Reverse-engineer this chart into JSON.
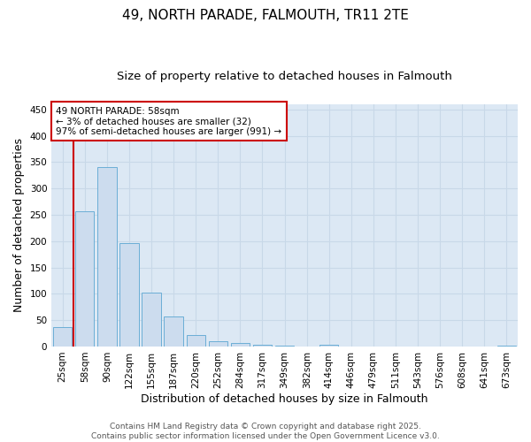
{
  "title": "49, NORTH PARADE, FALMOUTH, TR11 2TE",
  "subtitle": "Size of property relative to detached houses in Falmouth",
  "xlabel": "Distribution of detached houses by size in Falmouth",
  "ylabel": "Number of detached properties",
  "categories": [
    "25sqm",
    "58sqm",
    "90sqm",
    "122sqm",
    "155sqm",
    "187sqm",
    "220sqm",
    "252sqm",
    "284sqm",
    "317sqm",
    "349sqm",
    "382sqm",
    "414sqm",
    "446sqm",
    "479sqm",
    "511sqm",
    "543sqm",
    "576sqm",
    "608sqm",
    "641sqm",
    "673sqm"
  ],
  "values": [
    37,
    257,
    340,
    197,
    103,
    57,
    22,
    10,
    6,
    4,
    2,
    0,
    3,
    0,
    0,
    0,
    0,
    0,
    0,
    0,
    2
  ],
  "bar_face_color": "#ccdcee",
  "bar_edge_color": "#6baed6",
  "highlight_bar_index": 1,
  "highlight_color": "#cc0000",
  "ylim": [
    0,
    460
  ],
  "yticks": [
    0,
    50,
    100,
    150,
    200,
    250,
    300,
    350,
    400,
    450
  ],
  "annotation_box_text": "49 NORTH PARADE: 58sqm\n← 3% of detached houses are smaller (32)\n97% of semi-detached houses are larger (991) →",
  "annotation_box_color": "#cc0000",
  "grid_color": "#c8d8e8",
  "background_color": "#dce8f4",
  "footer_line1": "Contains HM Land Registry data © Crown copyright and database right 2025.",
  "footer_line2": "Contains public sector information licensed under the Open Government Licence v3.0.",
  "title_fontsize": 11,
  "subtitle_fontsize": 9.5,
  "axis_label_fontsize": 9,
  "tick_fontsize": 7.5,
  "annotation_fontsize": 7.5,
  "footer_fontsize": 6.5
}
